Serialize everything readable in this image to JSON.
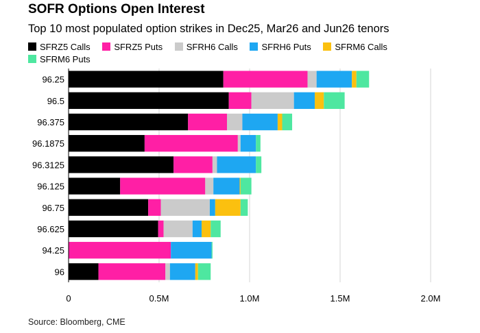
{
  "chart_data": {
    "type": "bar",
    "orientation": "horizontal",
    "stacked": true,
    "title": "SOFR Options Open Interest",
    "subtitle": "Top 10 most populated option strikes in Dec25, Mar26 and Jun26 tenors",
    "source": "Source: Bloomberg, CME",
    "xlabel": "",
    "ylabel": "",
    "xlim": [
      0,
      2000000
    ],
    "x_ticks": [
      0,
      500000,
      1000000,
      1500000,
      2000000
    ],
    "x_tick_labels": [
      "0",
      "0.5M",
      "1.0M",
      "1.5M",
      "2.0M"
    ],
    "grid": true,
    "legend_position": "top",
    "categories": [
      "96.25",
      "96.5",
      "96.375",
      "96.1875",
      "96.3125",
      "96.125",
      "96.75",
      "96.625",
      "94.25",
      "96"
    ],
    "series": [
      {
        "name": "SFRZ5 Calls",
        "color": "#000000",
        "values": [
          855000,
          885000,
          660000,
          420000,
          580000,
          285000,
          440000,
          495000,
          0,
          165000
        ]
      },
      {
        "name": "SFRZ5 Puts",
        "color": "#ff1fa5",
        "values": [
          465000,
          125000,
          215000,
          515000,
          215000,
          470000,
          70000,
          30000,
          565000,
          370000
        ]
      },
      {
        "name": "SFRH6 Calls",
        "color": "#cbcbcb",
        "values": [
          50000,
          235000,
          85000,
          15000,
          25000,
          45000,
          270000,
          160000,
          0,
          25000
        ]
      },
      {
        "name": "SFRH6 Puts",
        "color": "#1ea7f2",
        "values": [
          195000,
          115000,
          195000,
          85000,
          215000,
          145000,
          30000,
          50000,
          225000,
          140000
        ]
      },
      {
        "name": "SFRM6 Calls",
        "color": "#fbc00f",
        "values": [
          25000,
          50000,
          25000,
          0,
          0,
          5000,
          140000,
          50000,
          0,
          15000
        ]
      },
      {
        "name": "SFRM6 Puts",
        "color": "#4ee7a0",
        "values": [
          70000,
          115000,
          55000,
          25000,
          30000,
          60000,
          40000,
          55000,
          5000,
          70000
        ]
      }
    ]
  }
}
